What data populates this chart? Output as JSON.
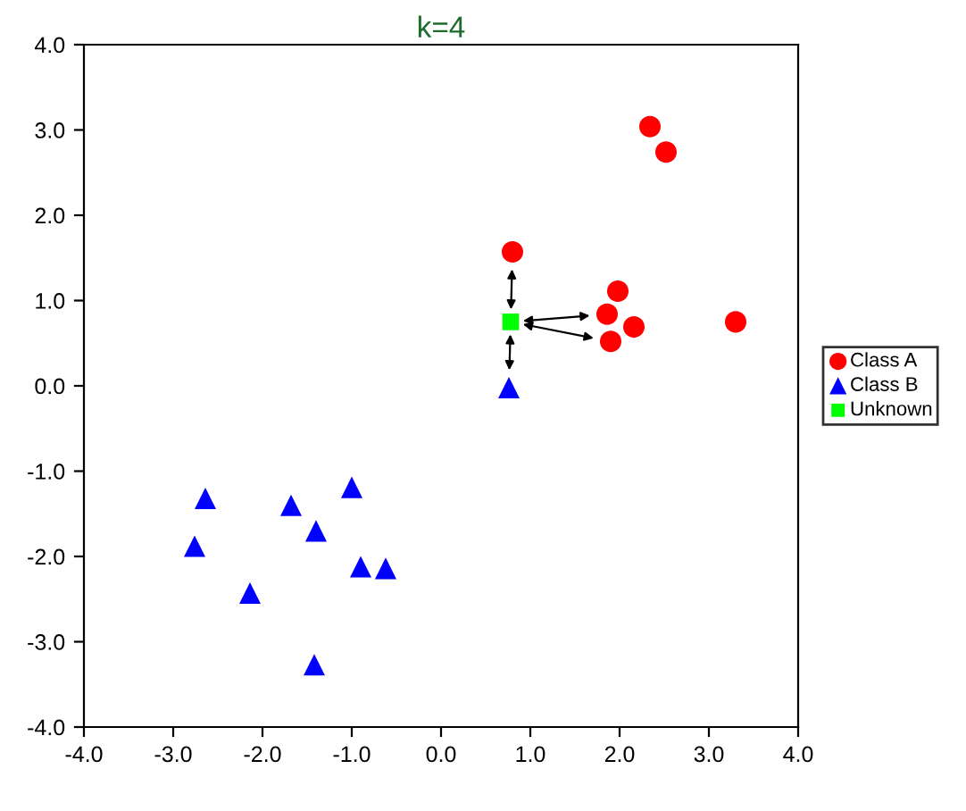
{
  "chart_data": {
    "type": "scatter",
    "title": "k=4",
    "series": [
      {
        "name": "Class A",
        "color": "#ff0000",
        "marker": "circle",
        "x": [
          2.34,
          2.52,
          0.8,
          1.98,
          1.86,
          2.16,
          1.9,
          3.3
        ],
        "values": [
          3.04,
          2.74,
          1.57,
          1.11,
          0.84,
          0.69,
          0.52,
          0.75
        ]
      },
      {
        "name": "Class B",
        "color": "#0000ff",
        "marker": "triangle",
        "x": [
          0.76,
          -2.64,
          -2.76,
          -2.14,
          -1.68,
          -1.4,
          -1.0,
          -0.9,
          -0.62,
          -1.42
        ],
        "values": [
          -0.02,
          -1.32,
          -1.88,
          -2.43,
          -1.4,
          -1.7,
          -1.19,
          -2.12,
          -2.14,
          -3.27
        ]
      },
      {
        "name": "Unknown",
        "color": "#00ff00",
        "marker": "square",
        "x": [
          0.78
        ],
        "values": [
          0.75
        ]
      }
    ],
    "xlim": [
      -4.0,
      4.0
    ],
    "ylim": [
      -4.0,
      4.0
    ],
    "xticks": [
      {
        "value": -4,
        "label": "-4.0"
      },
      {
        "value": -3,
        "label": "-3.0"
      },
      {
        "value": -2,
        "label": "-2.0"
      },
      {
        "value": -1,
        "label": "-1.0"
      },
      {
        "value": 0,
        "label": "0.0"
      },
      {
        "value": 1,
        "label": "1.0"
      },
      {
        "value": 2,
        "label": "2.0"
      },
      {
        "value": 3,
        "label": "3.0"
      },
      {
        "value": 4,
        "label": "4.0"
      }
    ],
    "yticks": [
      {
        "value": -4,
        "label": "-4.0"
      },
      {
        "value": -3,
        "label": "-3.0"
      },
      {
        "value": -2,
        "label": "-2.0"
      },
      {
        "value": -1,
        "label": "-1.0"
      },
      {
        "value": 0,
        "label": "0.0"
      },
      {
        "value": 1,
        "label": "1.0"
      },
      {
        "value": 2,
        "label": "2.0"
      },
      {
        "value": 3,
        "label": "3.0"
      },
      {
        "value": 4,
        "label": "4.0"
      }
    ],
    "grid": false,
    "legend": "right"
  }
}
